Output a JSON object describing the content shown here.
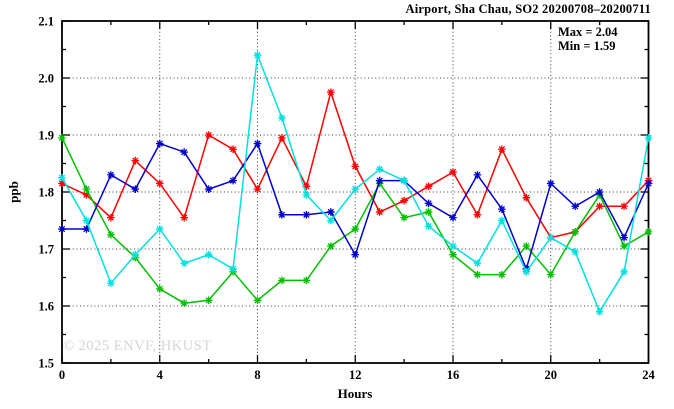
{
  "chart_data": {
    "type": "line",
    "title": "Airport, Sha Chau, SO2 20200708–20200711",
    "annotations": [
      "Max = 2.04",
      "Min = 1.59"
    ],
    "xlabel": "Hours",
    "ylabel": "ppb",
    "watermark": "© 2025 ENVF, HKUST",
    "xlim": [
      0,
      24
    ],
    "ylim": [
      1.5,
      2.1
    ],
    "x_major_ticks": [
      0,
      4,
      8,
      12,
      16,
      20,
      24
    ],
    "x_minor_step": 2,
    "y_major_step": 0.1,
    "y_minor_step": 0.05,
    "grid": "dotted",
    "legend": "none",
    "x": [
      0,
      1,
      2,
      3,
      4,
      5,
      6,
      7,
      8,
      9,
      10,
      11,
      12,
      13,
      14,
      15,
      16,
      17,
      18,
      19,
      20,
      21,
      22,
      23,
      24
    ],
    "series": [
      {
        "name": "red",
        "color": "#ff0000",
        "values": [
          1.815,
          1.795,
          1.755,
          1.855,
          1.815,
          1.755,
          1.9,
          1.875,
          1.805,
          1.895,
          1.81,
          1.975,
          1.845,
          1.765,
          1.785,
          1.81,
          1.835,
          1.76,
          1.875,
          1.79,
          1.72,
          1.73,
          1.775,
          1.775,
          1.82
        ]
      },
      {
        "name": "green",
        "color": "#00c000",
        "values": [
          1.895,
          1.805,
          1.725,
          1.685,
          1.63,
          1.605,
          1.61,
          1.66,
          1.61,
          1.645,
          1.645,
          1.705,
          1.735,
          1.815,
          1.755,
          1.765,
          1.69,
          1.655,
          1.655,
          1.705,
          1.655,
          1.73,
          1.795,
          1.705,
          1.73
        ]
      },
      {
        "name": "blue",
        "color": "#0000cd",
        "values": [
          1.735,
          1.735,
          1.83,
          1.805,
          1.885,
          1.87,
          1.805,
          1.82,
          1.885,
          1.76,
          1.76,
          1.765,
          1.69,
          1.82,
          1.82,
          1.78,
          1.755,
          1.83,
          1.77,
          1.665,
          1.815,
          1.775,
          1.8,
          1.72,
          1.815
        ]
      },
      {
        "name": "cyan",
        "color": "#00e0e0",
        "values": [
          1.825,
          1.75,
          1.64,
          1.69,
          1.735,
          1.675,
          1.69,
          1.665,
          2.04,
          1.93,
          1.795,
          1.75,
          1.805,
          1.84,
          1.82,
          1.74,
          1.705,
          1.675,
          1.75,
          1.66,
          1.72,
          1.695,
          1.59,
          1.66,
          1.895
        ]
      }
    ]
  }
}
